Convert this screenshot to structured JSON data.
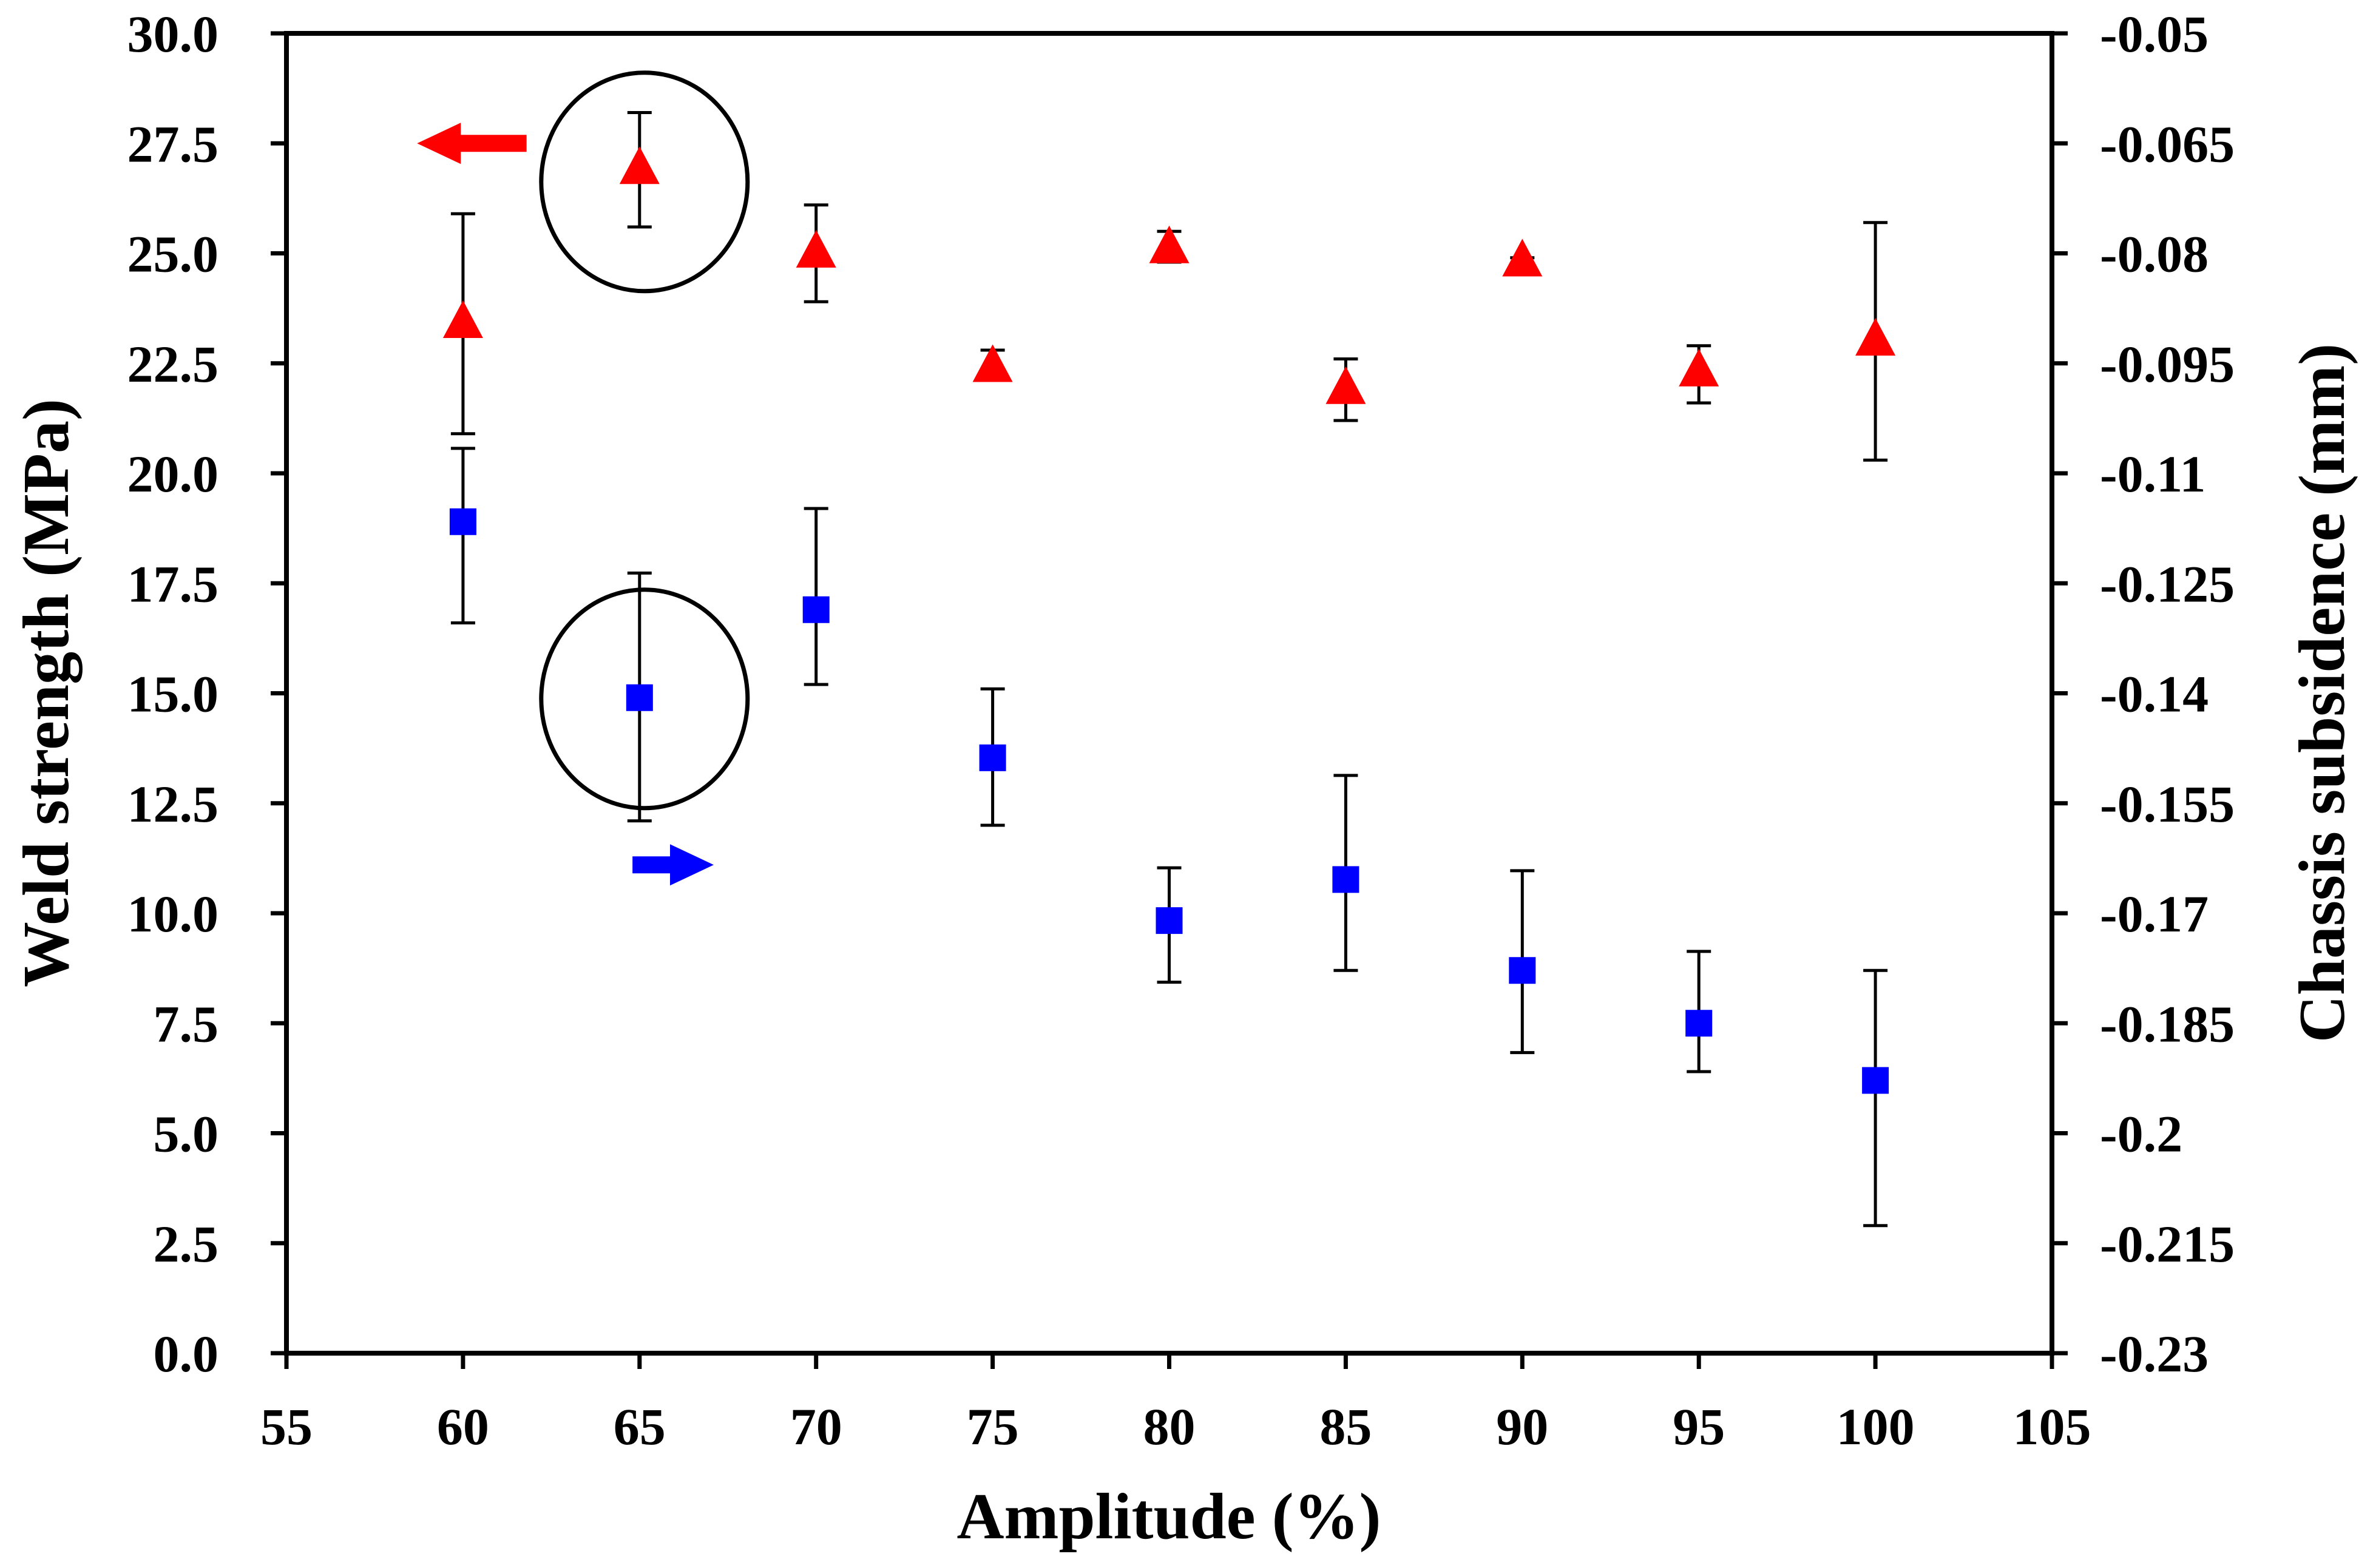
{
  "chart_data": {
    "type": "scatter",
    "title": "",
    "xlabel": "Amplitude (%)",
    "ylabel": "Weld strength (MPa)",
    "y2label": "Chassis subsidence (mm)",
    "xlim": [
      55,
      105
    ],
    "ylim": [
      0,
      30
    ],
    "y2lim": [
      -0.23,
      -0.05
    ],
    "x_ticks": [
      "55",
      "60",
      "65",
      "70",
      "75",
      "80",
      "85",
      "90",
      "95",
      "100",
      "105"
    ],
    "y_ticks": [
      "0.0",
      "2.5",
      "5.0",
      "7.5",
      "10.0",
      "12.5",
      "15.0",
      "17.5",
      "20.0",
      "22.5",
      "25.0",
      "27.5",
      "30.0"
    ],
    "y2_ticks": [
      "-0.23",
      "-0.215",
      "-0.2",
      "-0.185",
      "-0.17",
      "-0.155",
      "-0.14",
      "-0.125",
      "-0.11",
      "-0.095",
      "-0.08",
      "-0.065",
      "-0.05"
    ],
    "grid": false,
    "series": [
      {
        "name": "Weld strength",
        "axis": "left",
        "marker": "triangle",
        "color": "#ff0000",
        "x": [
          60,
          65,
          70,
          75,
          80,
          85,
          90,
          95,
          100
        ],
        "values": [
          23.4,
          26.9,
          25.0,
          22.4,
          25.1,
          21.9,
          24.8,
          22.3,
          23.0
        ],
        "err_low": [
          20.9,
          25.6,
          23.9,
          22.2,
          24.8,
          21.2,
          24.7,
          21.6,
          20.3
        ],
        "err_high": [
          25.9,
          28.2,
          26.1,
          22.8,
          25.5,
          22.6,
          24.9,
          22.9,
          25.7
        ]
      },
      {
        "name": "Chassis subsidence",
        "axis": "right",
        "marker": "square",
        "color": "#0000ff",
        "x": [
          60,
          65,
          70,
          75,
          80,
          85,
          90,
          95,
          100
        ],
        "values": [
          -0.1166,
          -0.1406,
          -0.1286,
          -0.1488,
          -0.171,
          -0.1654,
          -0.1778,
          -0.185,
          -0.1928
        ],
        "err_low": [
          -0.1304,
          -0.1574,
          -0.1388,
          -0.158,
          -0.1794,
          -0.1778,
          -0.189,
          -0.1916,
          -0.2126
        ],
        "err_high": [
          -0.1066,
          -0.1236,
          -0.1148,
          -0.1394,
          -0.1638,
          -0.1512,
          -0.1642,
          -0.1752,
          -0.1778
        ]
      }
    ],
    "annotations": [
      {
        "type": "circle",
        "around": "Weld strength at 65"
      },
      {
        "type": "circle",
        "around": "Chassis subsidence at 65"
      },
      {
        "type": "arrow",
        "direction": "left",
        "color": "#ff0000",
        "meaning": "Weld strength uses left axis"
      },
      {
        "type": "arrow",
        "direction": "right",
        "color": "#0000ff",
        "meaning": "Chassis subsidence uses right axis"
      }
    ]
  }
}
